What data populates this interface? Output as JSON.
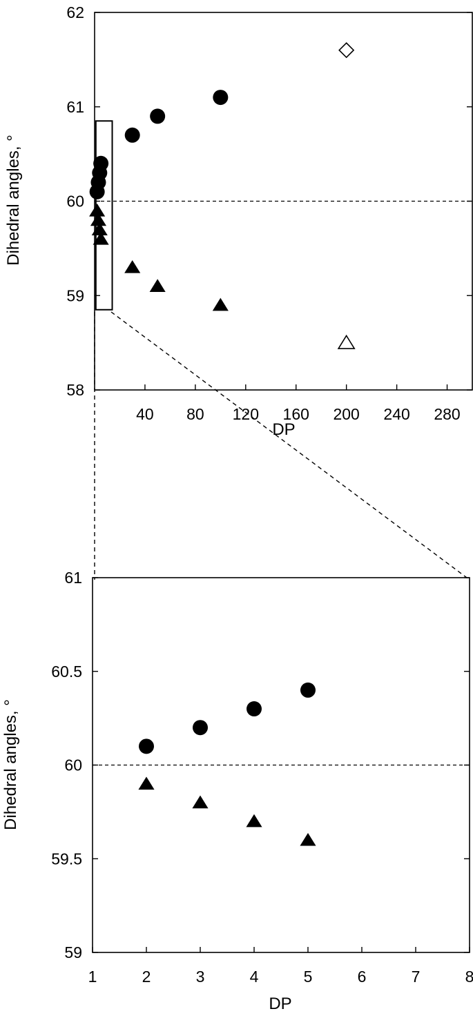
{
  "chart_data": [
    {
      "type": "scatter",
      "title": "",
      "xlabel": "DP",
      "ylabel": "Dihedral angles, °",
      "xlim": [
        0,
        300
      ],
      "ylim": [
        58,
        62
      ],
      "xticks": [
        40,
        80,
        120,
        160,
        200,
        240,
        280
      ],
      "yticks": [
        58,
        59,
        60,
        61,
        62
      ],
      "reference_line": 60,
      "grid": false,
      "legend": "none",
      "series": [
        {
          "marker": "filled-circle",
          "points": [
            [
              2,
              60.1
            ],
            [
              3,
              60.2
            ],
            [
              4,
              60.3
            ],
            [
              5,
              60.4
            ],
            [
              30,
              60.7
            ],
            [
              50,
              60.9
            ],
            [
              100,
              61.1
            ]
          ]
        },
        {
          "marker": "filled-triangle",
          "points": [
            [
              2,
              59.9
            ],
            [
              3,
              59.8
            ],
            [
              4,
              59.7
            ],
            [
              5,
              59.6
            ],
            [
              30,
              59.3
            ],
            [
              50,
              59.1
            ],
            [
              100,
              58.9
            ]
          ]
        },
        {
          "marker": "open-diamond",
          "points": [
            [
              200,
              61.6
            ]
          ]
        },
        {
          "marker": "open-triangle",
          "points": [
            [
              200,
              58.5
            ]
          ]
        }
      ],
      "zoom_box": {
        "xlim": [
          1,
          14
        ],
        "ylim": [
          58.85,
          60.85
        ]
      }
    },
    {
      "type": "scatter",
      "title": "",
      "xlabel": "DP",
      "ylabel": "Dihedral angles, °",
      "xlim": [
        1,
        8
      ],
      "ylim": [
        59,
        61
      ],
      "xticks": [
        1,
        2,
        3,
        4,
        5,
        6,
        7,
        8
      ],
      "yticks": [
        59,
        59.5,
        60,
        60.5,
        61
      ],
      "reference_line": 60,
      "grid": false,
      "legend": "none",
      "series": [
        {
          "marker": "filled-circle",
          "points": [
            [
              2,
              60.1
            ],
            [
              3,
              60.2
            ],
            [
              4,
              60.3
            ],
            [
              5,
              60.4
            ]
          ]
        },
        {
          "marker": "filled-triangle",
          "points": [
            [
              2,
              59.9
            ],
            [
              3,
              59.8
            ],
            [
              4,
              59.7
            ],
            [
              5,
              59.6
            ]
          ]
        }
      ]
    }
  ]
}
